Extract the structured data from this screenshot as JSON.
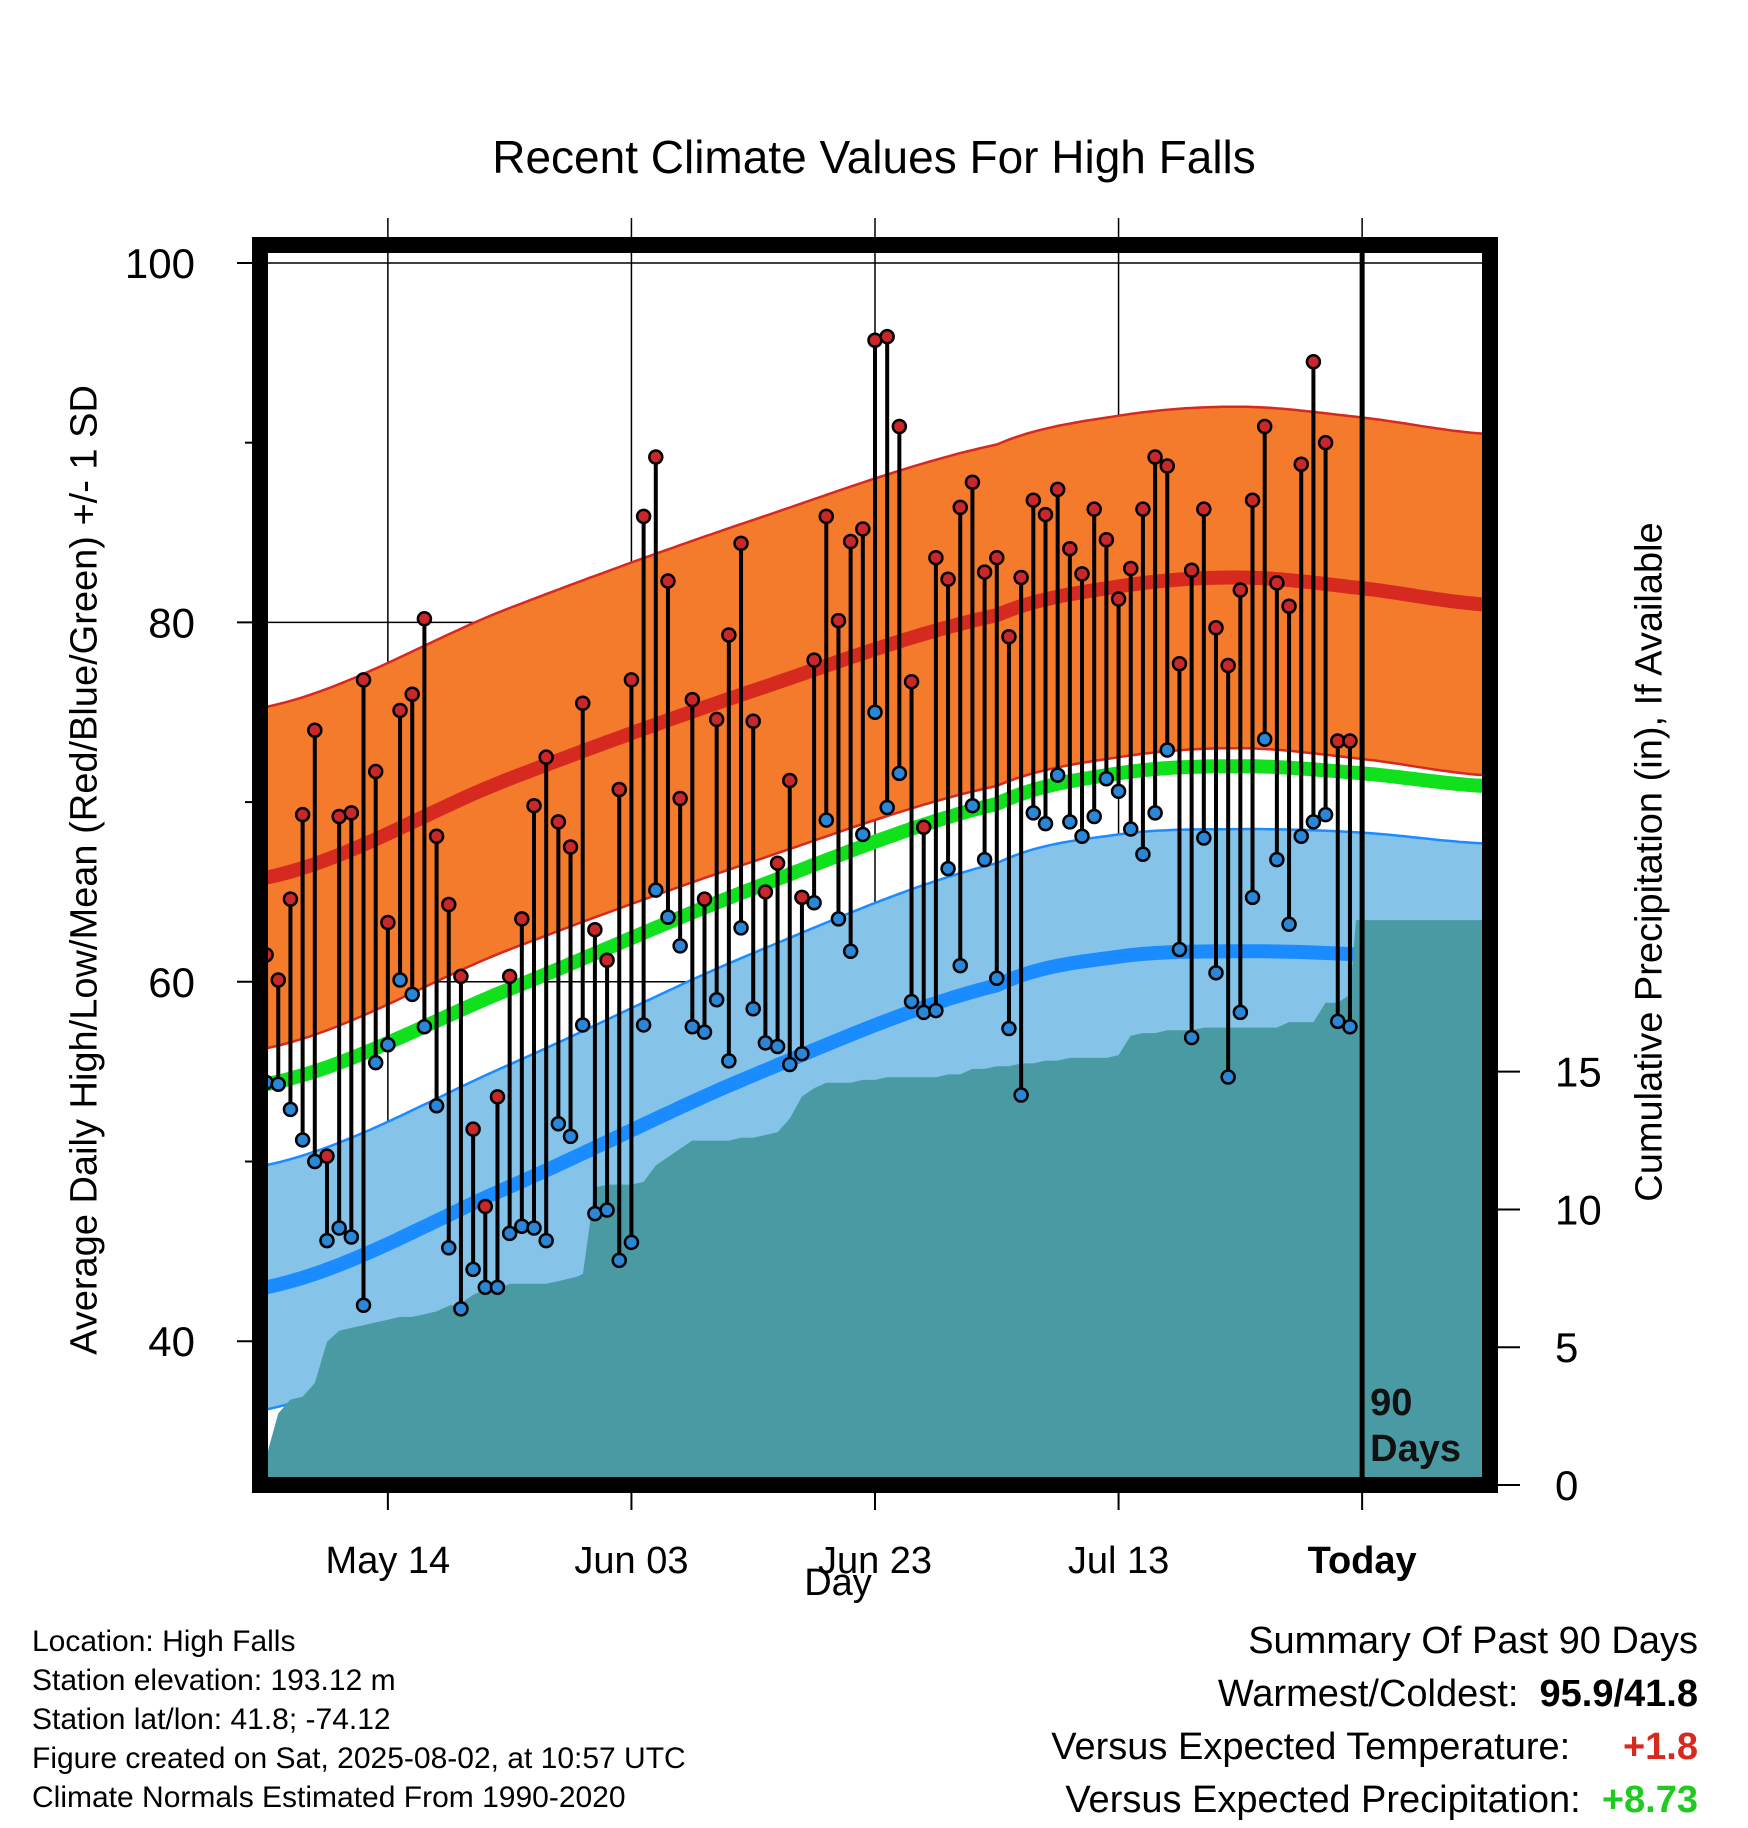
{
  "chart_data": {
    "type": "line",
    "title": "Recent Climate Values For High Falls",
    "xlabel": "Day",
    "ylabel": "Average Daily High/Low/Mean (Red/Blue/Green) +/- 1 SD",
    "y2label": "Cumulative Precipitation (in), If Available",
    "x_tick_labels": [
      "May 14",
      "Jun 03",
      "Jun 23",
      "Jul 13",
      "Today"
    ],
    "x_tick_days": [
      10,
      30,
      50,
      70,
      90
    ],
    "xlim": [
      -0.5,
      100.5
    ],
    "ylim": [
      32,
      101
    ],
    "y_ticks": [
      40,
      60,
      80,
      100
    ],
    "y2lim": [
      0,
      45
    ],
    "y2_ticks": [
      0,
      5,
      10,
      15
    ],
    "today_marker_label": "90 Days",
    "colors": {
      "high_normal": "#d62a20",
      "high_band": "#f47a2c",
      "low_normal": "#1a8cff",
      "low_band": "#85c3e8",
      "mean_normal": "#11e01d",
      "precip": "#4a9aa3",
      "high_point": "#c8282a",
      "low_point": "#2a86d6"
    },
    "normal_high": {
      "days": [
        0,
        20,
        40,
        60,
        70,
        80,
        90,
        100
      ],
      "values": [
        65.8,
        71.3,
        76.2,
        80.4,
        82.0,
        82.5,
        81.9,
        81.0
      ]
    },
    "normal_high_sd": 9.5,
    "normal_low": {
      "days": [
        0,
        20,
        40,
        60,
        70,
        80,
        90,
        100
      ],
      "values": [
        43.0,
        48.6,
        54.8,
        59.8,
        61.4,
        61.7,
        61.5,
        60.9
      ]
    },
    "normal_low_sd": 6.8,
    "normal_mean": {
      "days": [
        0,
        20,
        40,
        60,
        70,
        80,
        90,
        100
      ],
      "values": [
        54.3,
        59.6,
        65.2,
        69.9,
        71.6,
        72.0,
        71.6,
        70.9
      ]
    },
    "observed": {
      "days": [
        0,
        1,
        2,
        3,
        4,
        5,
        6,
        7,
        8,
        9,
        10,
        11,
        12,
        13,
        14,
        15,
        16,
        17,
        18,
        19,
        20,
        21,
        22,
        23,
        24,
        25,
        26,
        27,
        28,
        29,
        30,
        31,
        32,
        33,
        34,
        35,
        36,
        37,
        38,
        39,
        40,
        41,
        42,
        43,
        44,
        45,
        46,
        47,
        48,
        49,
        50,
        51,
        52,
        53,
        54,
        55,
        56,
        57,
        58,
        59,
        60,
        61,
        62,
        63,
        64,
        65,
        66,
        67,
        68,
        69,
        70,
        71,
        72,
        73,
        74,
        75,
        76,
        77,
        78,
        79,
        80,
        81,
        82,
        83,
        84,
        85,
        86,
        87,
        88,
        89
      ],
      "high": [
        61.5,
        60.1,
        64.6,
        69.3,
        74.0,
        50.3,
        69.2,
        69.4,
        76.8,
        71.7,
        63.3,
        75.1,
        76.0,
        80.2,
        68.1,
        64.3,
        60.3,
        51.8,
        47.5,
        53.6,
        60.3,
        63.5,
        69.8,
        72.5,
        68.9,
        67.5,
        75.5,
        62.9,
        61.2,
        70.7,
        76.8,
        85.9,
        89.2,
        82.3,
        70.2,
        75.7,
        64.6,
        74.6,
        79.3,
        84.4,
        74.5,
        65.0,
        66.6,
        71.2,
        64.7,
        77.9,
        85.9,
        80.1,
        84.5,
        85.2,
        95.7,
        95.9,
        90.9,
        76.7,
        68.6,
        83.6,
        82.4,
        86.4,
        87.8,
        82.8,
        83.6,
        79.2,
        82.5,
        86.8,
        86.0,
        87.4,
        84.1,
        82.7,
        86.3,
        84.6,
        81.3,
        83.0,
        86.3,
        89.2,
        88.7,
        77.7,
        82.9,
        86.3,
        79.7,
        77.6,
        81.8,
        86.8,
        90.9,
        82.2,
        80.9,
        88.8,
        94.5,
        90.0,
        73.4,
        73.4
      ],
      "low": [
        54.4,
        54.3,
        52.9,
        51.2,
        50.0,
        45.6,
        46.3,
        45.8,
        42.0,
        55.5,
        56.5,
        60.1,
        59.3,
        57.5,
        53.1,
        45.2,
        41.8,
        44.0,
        43.0,
        43.0,
        46.0,
        46.4,
        46.3,
        45.6,
        52.1,
        51.4,
        57.6,
        47.1,
        47.3,
        44.5,
        45.5,
        57.6,
        65.1,
        63.6,
        62.0,
        57.5,
        57.2,
        59.0,
        55.6,
        63.0,
        58.5,
        56.6,
        56.4,
        55.4,
        56.0,
        64.4,
        69.0,
        63.5,
        61.7,
        68.2,
        75.0,
        69.7,
        71.6,
        58.9,
        58.3,
        58.4,
        66.3,
        60.9,
        69.8,
        66.8,
        60.2,
        57.4,
        53.7,
        69.4,
        68.8,
        71.5,
        68.9,
        68.1,
        69.2,
        71.3,
        70.6,
        68.5,
        67.1,
        69.4,
        72.9,
        61.8,
        56.9,
        68.0,
        60.5,
        54.7,
        58.3,
        64.7,
        73.5,
        66.8,
        63.2,
        68.1,
        68.9,
        69.3,
        57.8,
        57.5
      ]
    },
    "precip": {
      "days": [
        0,
        1,
        2,
        3,
        4,
        5,
        6,
        7,
        8,
        9,
        10,
        11,
        12,
        13,
        14,
        15,
        16,
        17,
        18,
        19,
        20,
        21,
        22,
        23,
        24,
        25,
        26,
        27,
        28,
        29,
        30,
        31,
        32,
        33,
        34,
        35,
        36,
        37,
        38,
        39,
        40,
        41,
        42,
        43,
        44,
        45,
        46,
        47,
        48,
        49,
        50,
        51,
        52,
        53,
        54,
        55,
        56,
        57,
        58,
        59,
        60,
        61,
        62,
        63,
        64,
        65,
        66,
        67,
        68,
        69,
        70,
        71,
        72,
        73,
        74,
        75,
        76,
        77,
        78,
        79,
        80,
        81,
        82,
        83,
        84,
        85,
        86,
        87,
        88,
        89,
        89.5,
        100
      ],
      "values": [
        1.0,
        2.6,
        3.1,
        3.2,
        3.7,
        5.2,
        5.6,
        5.7,
        5.8,
        5.9,
        6.0,
        6.1,
        6.1,
        6.2,
        6.3,
        6.5,
        6.6,
        6.9,
        7.1,
        7.1,
        7.3,
        7.3,
        7.3,
        7.3,
        7.4,
        7.5,
        7.6,
        10.8,
        10.9,
        10.9,
        10.9,
        11.0,
        11.6,
        11.9,
        12.2,
        12.5,
        12.5,
        12.5,
        12.5,
        12.6,
        12.6,
        12.7,
        12.8,
        13.3,
        14.1,
        14.4,
        14.6,
        14.6,
        14.6,
        14.7,
        14.7,
        14.8,
        14.8,
        14.8,
        14.8,
        14.8,
        14.9,
        14.9,
        15.1,
        15.1,
        15.2,
        15.2,
        15.3,
        15.3,
        15.4,
        15.4,
        15.5,
        15.5,
        15.5,
        15.5,
        15.6,
        16.3,
        16.4,
        16.4,
        16.5,
        16.5,
        16.5,
        16.6,
        16.6,
        16.6,
        16.6,
        16.6,
        16.6,
        16.6,
        16.8,
        16.8,
        16.8,
        17.5,
        17.5,
        17.8,
        20.5,
        20.5
      ]
    }
  },
  "footer": {
    "location": "Location: High Falls",
    "elevation": "Station elevation: 193.12 m",
    "latlon": "Station lat/lon: 41.8; -74.12",
    "created": "Figure created on Sat, 2025-08-02, at 10:57 UTC",
    "normals": "Climate Normals Estimated From 1990-2020"
  },
  "summary": {
    "heading": "Summary Of Past 90 Days",
    "warm_cold_label": "Warmest/Coldest:",
    "warm_cold_value": "95.9/41.8",
    "temp_label": "Versus Expected Temperature:",
    "temp_value": "+1.8",
    "temp_color": "#d62a20",
    "precip_label": "Versus Expected Precipitation:",
    "precip_value": "+8.73",
    "precip_color": "#1ecb1e"
  }
}
